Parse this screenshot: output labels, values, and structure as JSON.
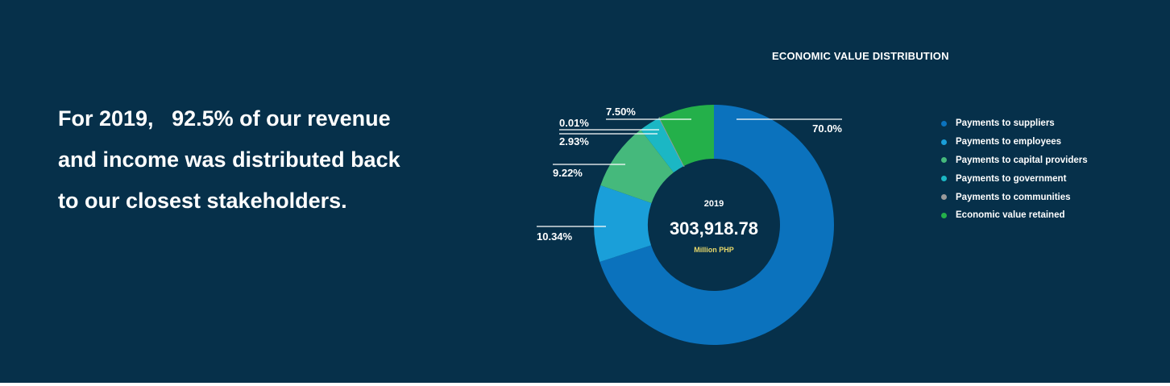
{
  "headline": "For 2019,   92.5% of our revenue and income was distributed back to our closest stakeholders.",
  "chart_data": {
    "type": "pie",
    "variant": "donut",
    "title": "ECONOMIC VALUE DISTRIBUTION",
    "center": {
      "year": "2019",
      "total": "303,918.78",
      "unit": "Million PHP",
      "unit_color": "#e8d86a"
    },
    "slices": [
      {
        "label": "Payments to suppliers",
        "value": 70.0,
        "display": "70.0%",
        "color": "#0b72bd"
      },
      {
        "label": "Payments to employees",
        "value": 10.34,
        "display": "10.34%",
        "color": "#1a9fd9"
      },
      {
        "label": "Payments to capital providers",
        "value": 9.22,
        "display": "9.22%",
        "color": "#45b97c"
      },
      {
        "label": "Payments to government",
        "value": 2.93,
        "display": "2.93%",
        "color": "#1bb7c4"
      },
      {
        "label": "Payments to communities",
        "value": 0.01,
        "display": "0.01%",
        "color": "#9a9a9a"
      },
      {
        "label": "Economic value retained",
        "value": 7.5,
        "display": "7.50%",
        "color": "#24b04a"
      }
    ],
    "legend_position": "right"
  },
  "colors": {
    "background": "#06304a",
    "text": "#ffffff"
  }
}
